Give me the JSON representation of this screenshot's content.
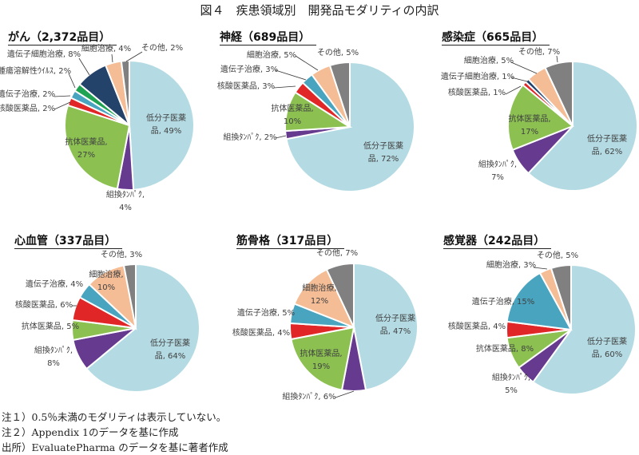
{
  "title": "図４　疾患領域別　開発品モダリティの内訳",
  "colors": {
    "低分子医薬品": "#b4dbe3",
    "組換ﾀﾝﾊﾟｸ": "#663a8f",
    "抗体医薬品": "#8cc152",
    "核酸医薬品": "#e02626",
    "遺伝子治療": "#49a4c0",
    "腫瘍溶解性ｳｲﾙｽ": "#1fa352",
    "遺伝子細胞治療": "#24436b",
    "細胞治療": "#f5bd96",
    "その他": "#808080"
  },
  "chart_data": [
    {
      "type": "pie",
      "title": "がん（2,372品目）",
      "slices": [
        {
          "label": "低分子医薬品",
          "value": 49
        },
        {
          "label": "組換ﾀﾝﾊﾟｸ",
          "value": 4
        },
        {
          "label": "抗体医薬品",
          "value": 27
        },
        {
          "label": "核酸医薬品",
          "value": 2
        },
        {
          "label": "遺伝子治療",
          "value": 2
        },
        {
          "label": "腫瘍溶解性ｳｲﾙｽ",
          "value": 2
        },
        {
          "label": "遺伝子細胞治療",
          "value": 8
        },
        {
          "label": "細胞治療",
          "value": 4
        },
        {
          "label": "その他",
          "value": 2
        }
      ]
    },
    {
      "type": "pie",
      "title": "神経（689品目）",
      "slices": [
        {
          "label": "低分子医薬品",
          "value": 72
        },
        {
          "label": "組換ﾀﾝﾊﾟｸ",
          "value": 2
        },
        {
          "label": "抗体医薬品",
          "value": 10
        },
        {
          "label": "核酸医薬品",
          "value": 3
        },
        {
          "label": "遺伝子治療",
          "value": 3
        },
        {
          "label": "細胞治療",
          "value": 5
        },
        {
          "label": "その他",
          "value": 5
        }
      ]
    },
    {
      "type": "pie",
      "title": "感染症（665品目）",
      "slices": [
        {
          "label": "低分子医薬品",
          "value": 62
        },
        {
          "label": "組換ﾀﾝﾊﾟｸ",
          "value": 7
        },
        {
          "label": "抗体医薬品",
          "value": 17
        },
        {
          "label": "核酸医薬品",
          "value": 1
        },
        {
          "label": "遺伝子細胞治療",
          "value": 1
        },
        {
          "label": "細胞治療",
          "value": 5
        },
        {
          "label": "その他",
          "value": 7
        }
      ]
    },
    {
      "type": "pie",
      "title": "心血管（337品目）",
      "slices": [
        {
          "label": "低分子医薬品",
          "value": 64
        },
        {
          "label": "組換ﾀﾝﾊﾟｸ",
          "value": 8
        },
        {
          "label": "抗体医薬品",
          "value": 5
        },
        {
          "label": "核酸医薬品",
          "value": 6
        },
        {
          "label": "遺伝子治療",
          "value": 4
        },
        {
          "label": "細胞治療",
          "value": 10
        },
        {
          "label": "その他",
          "value": 3
        }
      ]
    },
    {
      "type": "pie",
      "title": "筋骨格（317品目）",
      "slices": [
        {
          "label": "低分子医薬品",
          "value": 47
        },
        {
          "label": "組換ﾀﾝﾊﾟｸ",
          "value": 6
        },
        {
          "label": "抗体医薬品",
          "value": 19
        },
        {
          "label": "核酸医薬品",
          "value": 4
        },
        {
          "label": "遺伝子治療",
          "value": 5
        },
        {
          "label": "細胞治療",
          "value": 12
        },
        {
          "label": "その他",
          "value": 7
        }
      ]
    },
    {
      "type": "pie",
      "title": "感覚器（242品目）",
      "slices": [
        {
          "label": "低分子医薬品",
          "value": 60
        },
        {
          "label": "組換ﾀﾝﾊﾟｸ",
          "value": 5
        },
        {
          "label": "抗体医薬品",
          "value": 8
        },
        {
          "label": "核酸医薬品",
          "value": 4
        },
        {
          "label": "遺伝子治療",
          "value": 15
        },
        {
          "label": "細胞治療",
          "value": 3
        },
        {
          "label": "その他",
          "value": 5
        }
      ]
    }
  ],
  "notes": [
    "注１）0.5％未満のモダリティは表示していない。",
    "注２）Appendix 1のデータを基に作成",
    "出所）EvaluatePharma のデータを基に著者作成"
  ]
}
